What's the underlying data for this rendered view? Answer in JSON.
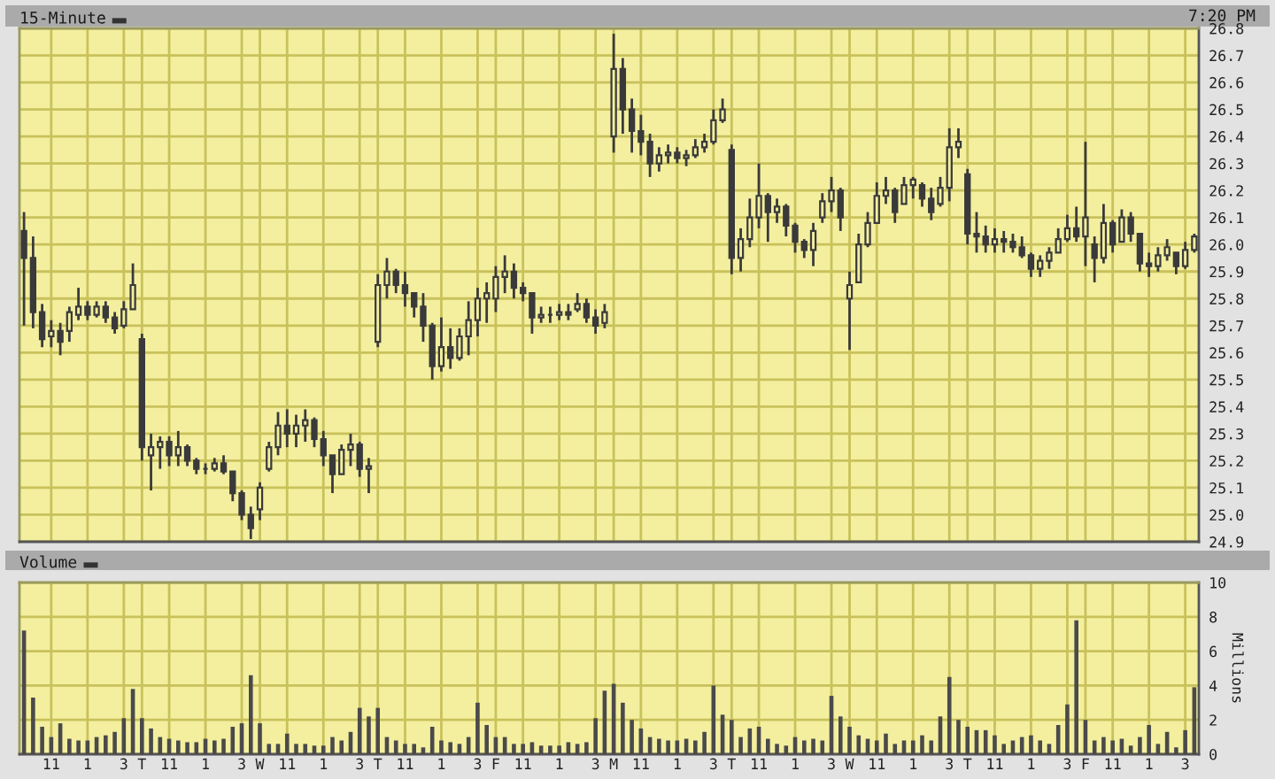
{
  "chart_data": [
    {
      "type": "candlestick",
      "title": "15-Minute",
      "annotations": [
        "7:20 PM"
      ],
      "color": "#3a3a3a",
      "categories": [
        null,
        null,
        null,
        null,
        null,
        null,
        null,
        null,
        null,
        null,
        null,
        null,
        null,
        null,
        null,
        null,
        null,
        null,
        null,
        null,
        null,
        null,
        null,
        null,
        null,
        null,
        null,
        null,
        null,
        null,
        null,
        null,
        null,
        null,
        null,
        null,
        null,
        null,
        null,
        null,
        null,
        null,
        null,
        null,
        null,
        null,
        null,
        null,
        null,
        null,
        null,
        null,
        null,
        null,
        null,
        null,
        null,
        null,
        null,
        null,
        null,
        null,
        null,
        null,
        null,
        null,
        null,
        null,
        null,
        null,
        null,
        null,
        null,
        null,
        null,
        null,
        null,
        null,
        null,
        null,
        null,
        null,
        null,
        null,
        null,
        null,
        null,
        null,
        null,
        null,
        null,
        null,
        null,
        null,
        null,
        null,
        null,
        null,
        null,
        null,
        null,
        null,
        null,
        null,
        null,
        null,
        null,
        null,
        null,
        null,
        null,
        null,
        null,
        null,
        null,
        null,
        null,
        null,
        null,
        null,
        null,
        null,
        null,
        null,
        null,
        null,
        null,
        null,
        null,
        null
      ],
      "ohlc": [
        [
          26.05,
          26.12,
          25.7,
          25.95
        ],
        [
          25.95,
          26.03,
          25.69,
          25.75
        ],
        [
          25.75,
          25.78,
          25.62,
          25.65
        ],
        [
          25.66,
          25.72,
          25.62,
          25.68
        ],
        [
          25.68,
          25.71,
          25.59,
          25.64
        ],
        [
          25.68,
          25.77,
          25.64,
          25.75
        ],
        [
          25.74,
          25.84,
          25.72,
          25.77
        ],
        [
          25.77,
          25.79,
          25.72,
          25.74
        ],
        [
          25.74,
          25.79,
          25.73,
          25.77
        ],
        [
          25.77,
          25.79,
          25.71,
          25.73
        ],
        [
          25.73,
          25.75,
          25.67,
          25.69
        ],
        [
          25.7,
          25.79,
          25.69,
          25.76
        ],
        [
          25.76,
          25.93,
          25.76,
          25.85
        ],
        [
          25.65,
          25.67,
          25.2,
          25.25
        ],
        [
          25.22,
          25.3,
          25.09,
          25.25
        ],
        [
          25.25,
          25.29,
          25.17,
          25.27
        ],
        [
          25.27,
          25.29,
          25.18,
          25.22
        ],
        [
          25.22,
          25.31,
          25.18,
          25.25
        ],
        [
          25.25,
          25.26,
          25.18,
          25.2
        ],
        [
          25.2,
          25.21,
          25.15,
          25.17
        ],
        [
          25.17,
          25.19,
          25.15,
          25.17
        ],
        [
          25.17,
          25.21,
          25.16,
          25.19
        ],
        [
          25.19,
          25.22,
          25.15,
          25.16
        ],
        [
          25.16,
          25.16,
          25.05,
          25.08
        ],
        [
          25.08,
          25.09,
          24.98,
          25.0
        ],
        [
          25.0,
          25.03,
          24.91,
          24.95
        ],
        [
          25.02,
          25.12,
          24.98,
          25.1
        ],
        [
          25.17,
          25.27,
          25.16,
          25.25
        ],
        [
          25.25,
          25.38,
          25.22,
          25.33
        ],
        [
          25.33,
          25.39,
          25.25,
          25.3
        ],
        [
          25.3,
          25.37,
          25.25,
          25.33
        ],
        [
          25.33,
          25.39,
          25.27,
          25.35
        ],
        [
          25.35,
          25.36,
          25.25,
          25.28
        ],
        [
          25.28,
          25.31,
          25.18,
          25.22
        ],
        [
          25.22,
          25.22,
          25.08,
          25.15
        ],
        [
          25.15,
          25.26,
          25.15,
          25.24
        ],
        [
          25.24,
          25.3,
          25.18,
          25.26
        ],
        [
          25.26,
          25.27,
          25.14,
          25.17
        ],
        [
          25.17,
          25.21,
          25.08,
          25.18
        ],
        [
          25.64,
          25.89,
          25.62,
          25.85
        ],
        [
          25.85,
          25.95,
          25.8,
          25.9
        ],
        [
          25.9,
          25.91,
          25.82,
          25.85
        ],
        [
          25.85,
          25.9,
          25.77,
          25.82
        ],
        [
          25.82,
          25.82,
          25.73,
          25.77
        ],
        [
          25.77,
          25.82,
          25.64,
          25.7
        ],
        [
          25.7,
          25.71,
          25.5,
          25.55
        ],
        [
          25.55,
          25.73,
          25.53,
          25.62
        ],
        [
          25.62,
          25.69,
          25.54,
          25.58
        ],
        [
          25.58,
          25.69,
          25.57,
          25.66
        ],
        [
          25.66,
          25.79,
          25.59,
          25.72
        ],
        [
          25.72,
          25.84,
          25.66,
          25.8
        ],
        [
          25.8,
          25.86,
          25.71,
          25.82
        ],
        [
          25.8,
          25.92,
          25.75,
          25.88
        ],
        [
          25.88,
          25.96,
          25.82,
          25.9
        ],
        [
          25.9,
          25.93,
          25.8,
          25.84
        ],
        [
          25.84,
          25.86,
          25.79,
          25.82
        ],
        [
          25.82,
          25.82,
          25.67,
          25.73
        ],
        [
          25.73,
          25.77,
          25.71,
          25.74
        ],
        [
          25.74,
          25.77,
          25.71,
          25.74
        ],
        [
          25.74,
          25.78,
          25.72,
          25.75
        ],
        [
          25.75,
          25.78,
          25.72,
          25.74
        ],
        [
          25.76,
          25.82,
          25.75,
          25.78
        ],
        [
          25.78,
          25.8,
          25.71,
          25.73
        ],
        [
          25.73,
          25.76,
          25.67,
          25.7
        ],
        [
          25.71,
          25.78,
          25.69,
          25.75
        ],
        [
          26.4,
          26.78,
          26.34,
          26.65
        ],
        [
          26.65,
          26.69,
          26.41,
          26.5
        ],
        [
          26.5,
          26.54,
          26.34,
          26.42
        ],
        [
          26.42,
          26.48,
          26.33,
          26.38
        ],
        [
          26.38,
          26.41,
          26.25,
          26.3
        ],
        [
          26.3,
          26.36,
          26.27,
          26.33
        ],
        [
          26.33,
          26.37,
          26.3,
          26.34
        ],
        [
          26.34,
          26.36,
          26.3,
          26.32
        ],
        [
          26.32,
          26.35,
          26.29,
          26.33
        ],
        [
          26.33,
          26.39,
          26.32,
          26.36
        ],
        [
          26.36,
          26.41,
          26.34,
          26.38
        ],
        [
          26.38,
          26.5,
          26.37,
          26.46
        ],
        [
          26.46,
          26.54,
          26.45,
          26.5
        ],
        [
          26.35,
          26.37,
          25.89,
          25.95
        ],
        [
          25.95,
          26.06,
          25.9,
          26.02
        ],
        [
          26.02,
          26.17,
          25.99,
          26.1
        ],
        [
          26.1,
          26.3,
          26.06,
          26.18
        ],
        [
          26.18,
          26.19,
          26.01,
          26.12
        ],
        [
          26.12,
          26.17,
          26.08,
          26.14
        ],
        [
          26.14,
          26.15,
          26.03,
          26.07
        ],
        [
          26.07,
          26.08,
          25.97,
          26.01
        ],
        [
          26.01,
          26.02,
          25.95,
          25.98
        ],
        [
          25.98,
          26.08,
          25.92,
          26.05
        ],
        [
          26.1,
          26.19,
          26.08,
          26.16
        ],
        [
          26.16,
          26.25,
          26.12,
          26.2
        ],
        [
          26.2,
          26.21,
          26.05,
          26.1
        ],
        [
          25.8,
          25.9,
          25.61,
          25.85
        ],
        [
          25.86,
          26.04,
          25.86,
          26.0
        ],
        [
          26.0,
          26.12,
          25.99,
          26.08
        ],
        [
          26.08,
          26.23,
          26.08,
          26.18
        ],
        [
          26.18,
          26.25,
          26.15,
          26.2
        ],
        [
          26.2,
          26.21,
          26.08,
          26.12
        ],
        [
          26.15,
          26.25,
          26.15,
          26.22
        ],
        [
          26.22,
          26.25,
          26.17,
          26.24
        ],
        [
          26.22,
          26.23,
          26.14,
          26.17
        ],
        [
          26.17,
          26.21,
          26.09,
          26.12
        ],
        [
          26.15,
          26.25,
          26.14,
          26.21
        ],
        [
          26.21,
          26.43,
          26.16,
          26.36
        ],
        [
          26.36,
          26.43,
          26.32,
          26.38
        ],
        [
          26.26,
          26.28,
          26.0,
          26.04
        ],
        [
          26.04,
          26.12,
          25.97,
          26.03
        ],
        [
          26.03,
          26.07,
          25.97,
          26.0
        ],
        [
          26.0,
          26.06,
          25.97,
          26.02
        ],
        [
          26.02,
          26.05,
          25.97,
          26.01
        ],
        [
          26.01,
          26.04,
          25.97,
          25.99
        ],
        [
          25.99,
          26.03,
          25.95,
          25.96
        ],
        [
          25.96,
          25.97,
          25.88,
          25.91
        ],
        [
          25.91,
          25.96,
          25.88,
          25.94
        ],
        [
          25.94,
          25.99,
          25.91,
          25.97
        ],
        [
          25.97,
          26.06,
          25.97,
          26.02
        ],
        [
          26.02,
          26.11,
          26.01,
          26.06
        ],
        [
          26.06,
          26.14,
          26.01,
          26.03
        ],
        [
          26.03,
          26.38,
          25.92,
          26.1
        ],
        [
          26.0,
          26.03,
          25.86,
          25.95
        ],
        [
          25.95,
          26.15,
          25.93,
          26.08
        ],
        [
          26.08,
          26.09,
          25.97,
          26.0
        ],
        [
          26.01,
          26.13,
          26.01,
          26.1
        ],
        [
          26.1,
          26.12,
          26.01,
          26.04
        ],
        [
          26.04,
          26.04,
          25.9,
          25.93
        ],
        [
          25.93,
          25.97,
          25.88,
          25.92
        ],
        [
          25.92,
          25.99,
          25.9,
          25.96
        ],
        [
          25.96,
          26.02,
          25.94,
          25.99
        ],
        [
          25.97,
          25.97,
          25.89,
          25.92
        ],
        [
          25.92,
          26.01,
          25.91,
          25.98
        ],
        [
          25.98,
          26.04,
          25.97,
          26.03
        ]
      ],
      "ylim": [
        24.9,
        26.8
      ],
      "yticks": [
        24.9,
        {
          "value": 25.0,
          "label": "25.0"
        },
        25.1,
        25.2,
        25.3,
        25.4,
        25.5,
        25.6,
        25.7,
        25.8,
        25.9,
        {
          "value": 26.0,
          "label": "26.0"
        },
        26.1,
        26.2,
        26.3,
        26.4,
        26.5,
        26.6,
        26.7,
        26.8
      ],
      "grid": true,
      "tick_labels": "y"
    },
    {
      "type": "bar",
      "title": "Volume",
      "ylabel": "Millions",
      "color": "#4a4a4a",
      "categories": [
        null,
        null,
        null,
        "11",
        null,
        null,
        null,
        "1",
        null,
        null,
        null,
        "3",
        null,
        "T",
        null,
        null,
        "11",
        null,
        null,
        null,
        "1",
        null,
        null,
        null,
        "3",
        null,
        "W",
        null,
        null,
        "11",
        null,
        null,
        null,
        "1",
        null,
        null,
        null,
        "3",
        null,
        "T",
        null,
        null,
        "11",
        null,
        null,
        null,
        "1",
        null,
        null,
        null,
        "3",
        null,
        "F",
        null,
        null,
        "11",
        null,
        null,
        null,
        "1",
        null,
        null,
        null,
        "3",
        null,
        "M",
        null,
        null,
        "11",
        null,
        null,
        null,
        "1",
        null,
        null,
        null,
        "3",
        null,
        "T",
        null,
        null,
        "11",
        null,
        null,
        null,
        "1",
        null,
        null,
        null,
        "3",
        null,
        "W",
        null,
        null,
        "11",
        null,
        null,
        null,
        "1",
        null,
        null,
        null,
        "3",
        null,
        "T",
        null,
        null,
        "11",
        null,
        null,
        null,
        "1",
        null,
        null,
        null,
        "3",
        null,
        "F",
        null,
        null,
        "11",
        null,
        null,
        null,
        "1",
        null,
        null,
        null,
        "3",
        null
      ],
      "values": [
        7.2,
        3.3,
        1.6,
        1.0,
        1.8,
        0.9,
        0.8,
        0.8,
        1.0,
        1.1,
        1.3,
        2.1,
        3.8,
        2.1,
        1.5,
        1.0,
        0.9,
        0.8,
        0.7,
        0.7,
        0.9,
        0.8,
        0.9,
        1.6,
        1.8,
        4.6,
        1.8,
        0.6,
        0.6,
        1.2,
        0.6,
        0.6,
        0.5,
        0.5,
        1.0,
        0.8,
        1.3,
        2.7,
        2.2,
        2.7,
        1.0,
        0.8,
        0.6,
        0.6,
        0.4,
        1.6,
        0.8,
        0.7,
        0.6,
        1.0,
        3.0,
        1.7,
        1.0,
        1.0,
        0.6,
        0.6,
        0.7,
        0.5,
        0.5,
        0.5,
        0.7,
        0.6,
        0.7,
        2.1,
        3.7,
        4.1,
        3.0,
        2.0,
        1.5,
        1.0,
        0.9,
        0.8,
        0.8,
        0.9,
        0.8,
        1.3,
        4.0,
        2.3,
        2.0,
        1.0,
        1.5,
        1.6,
        0.9,
        0.6,
        0.5,
        1.0,
        0.8,
        0.9,
        0.8,
        3.4,
        2.2,
        1.6,
        1.1,
        0.9,
        0.8,
        1.2,
        0.6,
        0.8,
        0.8,
        1.1,
        0.8,
        2.2,
        4.5,
        2.0,
        1.6,
        1.4,
        1.4,
        1.1,
        0.6,
        0.8,
        1.0,
        1.1,
        0.8,
        0.6,
        1.7,
        2.9,
        7.8,
        2.0,
        0.8,
        1.0,
        0.8,
        0.9,
        0.5,
        1.0,
        1.7,
        0.6,
        1.3,
        0.4,
        1.4,
        3.9
      ],
      "ylim": [
        0,
        10
      ],
      "yticks": [
        0,
        2,
        4,
        6,
        8,
        10
      ],
      "grid": true
    }
  ]
}
